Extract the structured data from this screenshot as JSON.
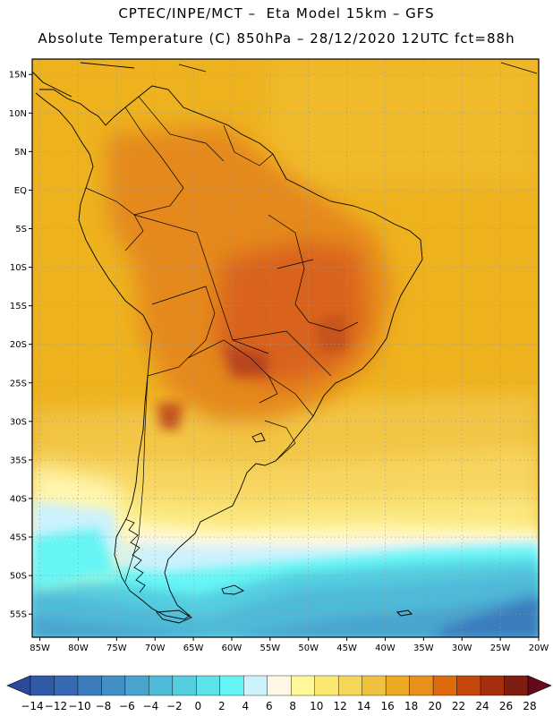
{
  "header": {
    "title_line1": "CPTEC/INPE/MCT –  Eta Model 15km – GFS",
    "title_line2": "Absolute Temperature (C) 850hPa – 28/12/2020 12UTC fct=88h"
  },
  "map": {
    "lat_ticks": [
      {
        "label": "15N",
        "lat": 15
      },
      {
        "label": "10N",
        "lat": 10
      },
      {
        "label": "5N",
        "lat": 5
      },
      {
        "label": "EQ",
        "lat": 0
      },
      {
        "label": "5S",
        "lat": -5
      },
      {
        "label": "10S",
        "lat": -10
      },
      {
        "label": "15S",
        "lat": -15
      },
      {
        "label": "20S",
        "lat": -20
      },
      {
        "label": "25S",
        "lat": -25
      },
      {
        "label": "30S",
        "lat": -30
      },
      {
        "label": "35S",
        "lat": -35
      },
      {
        "label": "40S",
        "lat": -40
      },
      {
        "label": "45S",
        "lat": -45
      },
      {
        "label": "50S",
        "lat": -50
      },
      {
        "label": "55S",
        "lat": -55
      }
    ],
    "lon_ticks": [
      {
        "label": "85W",
        "lon": -85
      },
      {
        "label": "80W",
        "lon": -80
      },
      {
        "label": "75W",
        "lon": -75
      },
      {
        "label": "70W",
        "lon": -70
      },
      {
        "label": "65W",
        "lon": -65
      },
      {
        "label": "60W",
        "lon": -60
      },
      {
        "label": "55W",
        "lon": -55
      },
      {
        "label": "50W",
        "lon": -50
      },
      {
        "label": "45W",
        "lon": -45
      },
      {
        "label": "40W",
        "lon": -40
      },
      {
        "label": "35W",
        "lon": -35
      },
      {
        "label": "30W",
        "lon": -30
      },
      {
        "label": "25W",
        "lon": -25
      },
      {
        "label": "20W",
        "lon": -20
      }
    ],
    "lon_range": [
      -86,
      -20
    ],
    "lat_range": [
      -58,
      17
    ]
  },
  "colorbar": {
    "labels": [
      "−14",
      "−12",
      "−10",
      "−8",
      "−6",
      "−4",
      "−2",
      "0",
      "2",
      "4",
      "6",
      "8",
      "10",
      "12",
      "14",
      "16",
      "18",
      "20",
      "22",
      "24",
      "26",
      "28"
    ],
    "colors": [
      "#2a4a9c",
      "#2f5aa8",
      "#3569b2",
      "#3b7cbd",
      "#4290c6",
      "#48a4cf",
      "#4fbad8",
      "#55cde0",
      "#5ce2e8",
      "#66f5f5",
      "#ccf2fc",
      "#fff7e5",
      "#fff79a",
      "#fbe871",
      "#f5d65a",
      "#f0c13e",
      "#eca923",
      "#e7901b",
      "#dd6a0c",
      "#c6470b",
      "#a52f0c",
      "#7e1e10",
      "#640a18"
    ]
  }
}
